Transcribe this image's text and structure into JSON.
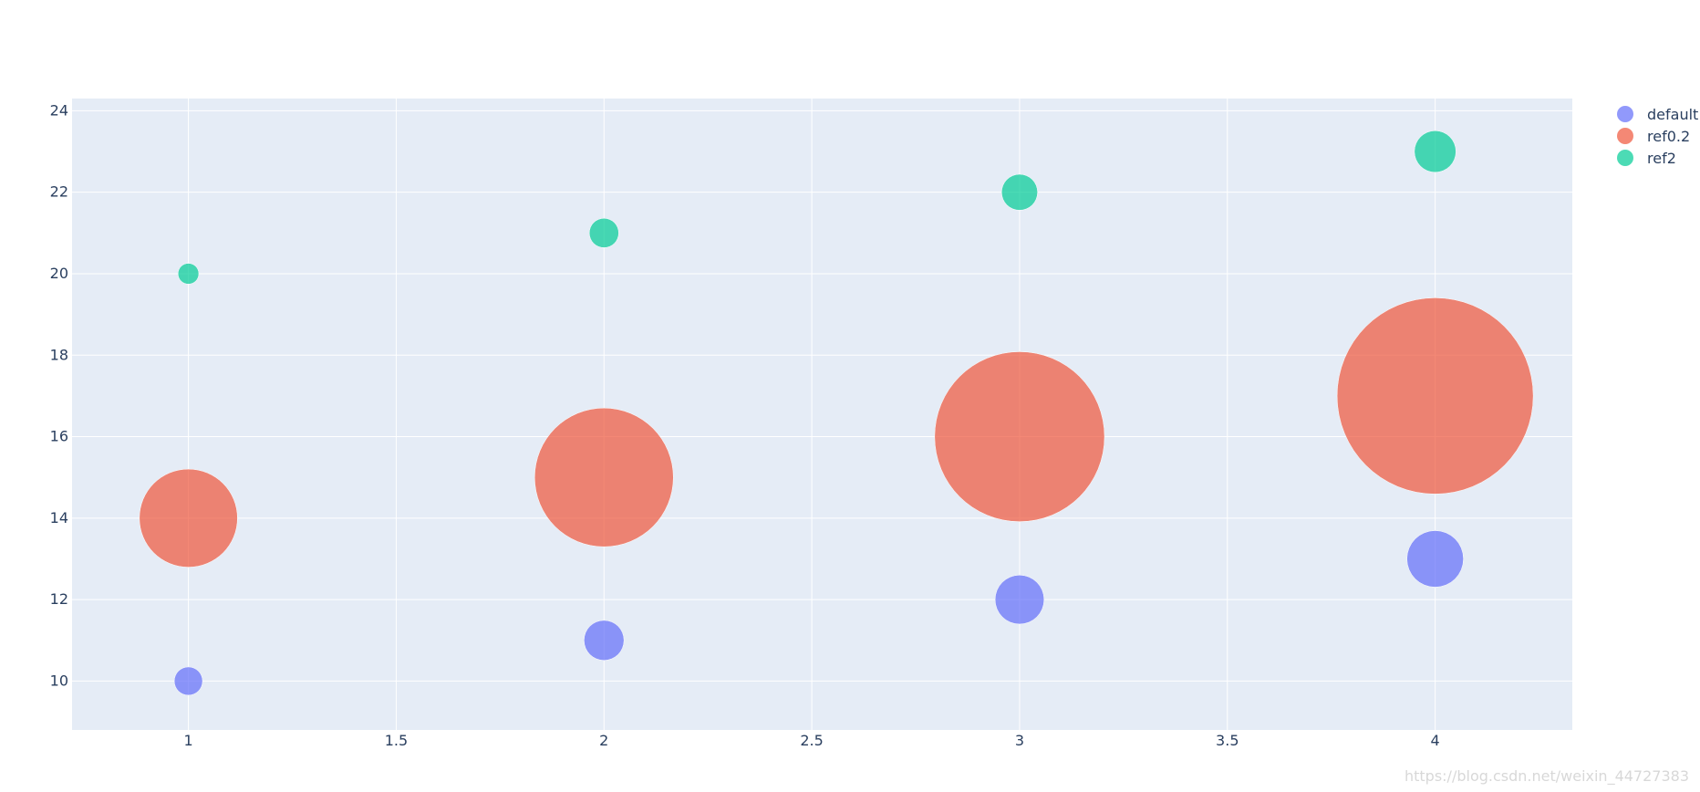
{
  "chart_data": {
    "type": "scatter",
    "title": "",
    "xlabel": "",
    "ylabel": "",
    "x": [
      1,
      2,
      3,
      4
    ],
    "xlim": [
      0.72,
      4.33
    ],
    "ylim": [
      8.8,
      24.3
    ],
    "xticks": [
      1,
      1.5,
      2,
      2.5,
      3,
      3.5,
      4
    ],
    "yticks": [
      10,
      12,
      14,
      16,
      18,
      20,
      22,
      24
    ],
    "xtick_labels": [
      "1",
      "1.5",
      "2",
      "2.5",
      "3",
      "3.5",
      "4"
    ],
    "ytick_labels": [
      "10",
      "12",
      "14",
      "16",
      "18",
      "20",
      "22",
      "24"
    ],
    "grid": true,
    "legend": "top-right",
    "series": [
      {
        "name": "default",
        "color": "#636efa",
        "y": [
          10,
          11,
          12,
          13
        ],
        "size": [
          10,
          20,
          30,
          40
        ]
      },
      {
        "name": "ref0.2",
        "color": "#ef553b",
        "y": [
          14,
          15,
          16,
          17
        ],
        "size": [
          10,
          20,
          30,
          40
        ]
      },
      {
        "name": "ref2",
        "color": "#00cc96",
        "y": [
          20,
          21,
          22,
          23
        ],
        "size": [
          10,
          20,
          30,
          40
        ]
      }
    ]
  },
  "watermark": "https://blog.csdn.net/weixin_44727383"
}
